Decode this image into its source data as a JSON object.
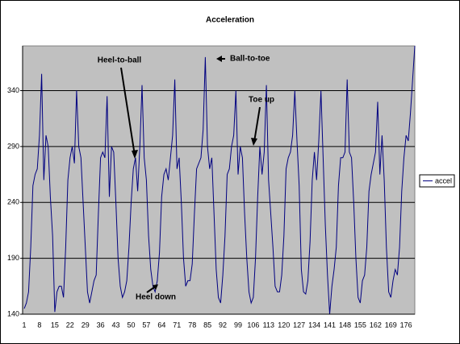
{
  "chart_data": {
    "type": "line",
    "title": "Acceleration",
    "categories": [
      1,
      null,
      null,
      null,
      null,
      null,
      null,
      8,
      null,
      null,
      null,
      null,
      null,
      null,
      15,
      null,
      null,
      null,
      null,
      null,
      null,
      22,
      null,
      null,
      null,
      null,
      null,
      null,
      29,
      null,
      null,
      null,
      null,
      null,
      null,
      36,
      null,
      null,
      null,
      null,
      null,
      null,
      43,
      null,
      null,
      null,
      null,
      null,
      null,
      50,
      null,
      null,
      null,
      null,
      null,
      null,
      57,
      null,
      null,
      null,
      null,
      null,
      null,
      64,
      null,
      null,
      null,
      null,
      null,
      null,
      71,
      null,
      null,
      null,
      null,
      null,
      null,
      78,
      null,
      null,
      null,
      null,
      null,
      null,
      85,
      null,
      null,
      null,
      null,
      null,
      null,
      92,
      null,
      null,
      null,
      null,
      null,
      null,
      99,
      null,
      null,
      null,
      null,
      null,
      null,
      106,
      null,
      null,
      null,
      null,
      null,
      null,
      113,
      null,
      null,
      null,
      null,
      null,
      null,
      120,
      null,
      null,
      null,
      null,
      null,
      null,
      127,
      null,
      null,
      null,
      null,
      null,
      null,
      134,
      null,
      null,
      null,
      null,
      null,
      null,
      141,
      null,
      null,
      null,
      null,
      null,
      null,
      148,
      null,
      null,
      null,
      null,
      null,
      null,
      155,
      null,
      null,
      null,
      null,
      null,
      null,
      162,
      null,
      null,
      null,
      null,
      null,
      null,
      169,
      null,
      null,
      null,
      null,
      null,
      null,
      176,
      null,
      null,
      null,
      null
    ],
    "series": [
      {
        "name": "accel",
        "color": "#000080",
        "values": [
          145,
          150,
          160,
          200,
          255,
          265,
          270,
          300,
          355,
          260,
          300,
          290,
          245,
          210,
          142,
          160,
          165,
          165,
          155,
          200,
          260,
          280,
          290,
          275,
          340,
          290,
          280,
          240,
          200,
          160,
          150,
          160,
          170,
          175,
          230,
          280,
          285,
          280,
          335,
          245,
          290,
          285,
          240,
          190,
          165,
          155,
          160,
          170,
          200,
          240,
          270,
          280,
          250,
          290,
          345,
          280,
          260,
          210,
          180,
          165,
          160,
          170,
          195,
          245,
          265,
          270,
          260,
          280,
          300,
          350,
          270,
          280,
          240,
          190,
          165,
          170,
          170,
          185,
          230,
          270,
          275,
          280,
          305,
          370,
          290,
          270,
          280,
          230,
          180,
          155,
          150,
          175,
          210,
          265,
          270,
          290,
          300,
          340,
          265,
          290,
          280,
          230,
          190,
          160,
          150,
          155,
          190,
          245,
          290,
          265,
          285,
          345,
          260,
          230,
          200,
          165,
          160,
          160,
          175,
          210,
          270,
          280,
          285,
          300,
          340,
          295,
          255,
          180,
          160,
          158,
          170,
          205,
          260,
          285,
          260,
          295,
          340,
          280,
          220,
          175,
          140,
          165,
          180,
          200,
          255,
          280,
          280,
          285,
          350,
          285,
          280,
          240,
          190,
          155,
          150,
          170,
          175,
          200,
          250,
          265,
          275,
          285,
          330,
          265,
          300,
          260,
          200,
          160,
          155,
          170,
          180,
          175,
          200,
          250,
          280,
          300,
          295,
          320,
          350,
          380
        ]
      }
    ],
    "ylim": [
      140,
      380
    ],
    "yticks": [
      140,
      190,
      240,
      290,
      340
    ],
    "grid": true,
    "legend": "right",
    "annotations": [
      "Heel-to-ball",
      "Ball-to-toe",
      "Toe up",
      "Heel down"
    ]
  }
}
